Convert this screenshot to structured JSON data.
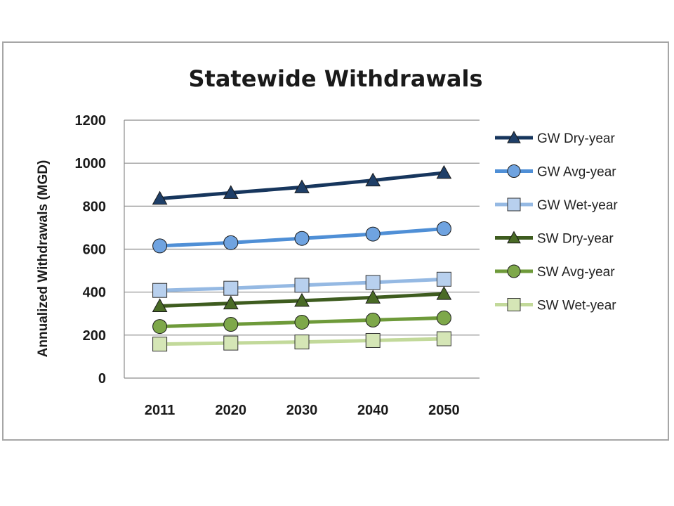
{
  "chart_data": {
    "type": "line",
    "title": "Statewide Withdrawals",
    "ylabel": "Annualized Withdrawals (MGD)",
    "xlabel": "",
    "categories": [
      "2011",
      "2020",
      "2030",
      "2040",
      "2050"
    ],
    "ylim": [
      0,
      1200
    ],
    "yticks": [
      0,
      200,
      400,
      600,
      800,
      1000,
      1200
    ],
    "grid": true,
    "legend_position": "right",
    "series": [
      {
        "name": "GW Dry-year",
        "values": [
          835,
          862,
          888,
          920,
          955
        ],
        "color": "#17365d",
        "marker": "triangle",
        "fill": "#1f3f68"
      },
      {
        "name": "GW Avg-year",
        "values": [
          615,
          630,
          650,
          670,
          695
        ],
        "color": "#4f8fd6",
        "marker": "circle",
        "fill": "#6fa3e0"
      },
      {
        "name": "GW Wet-year",
        "values": [
          408,
          418,
          432,
          445,
          460
        ],
        "color": "#95b9e3",
        "marker": "square",
        "fill": "#b8d0ee"
      },
      {
        "name": "SW Dry-year",
        "values": [
          335,
          348,
          360,
          375,
          392
        ],
        "color": "#3e5c1f",
        "marker": "triangle",
        "fill": "#4a6b26"
      },
      {
        "name": "SW Avg-year",
        "values": [
          240,
          250,
          260,
          270,
          280
        ],
        "color": "#6e9a3a",
        "marker": "circle",
        "fill": "#7ea84a"
      },
      {
        "name": "SW Wet-year",
        "values": [
          158,
          163,
          168,
          175,
          183
        ],
        "color": "#c2d99a",
        "marker": "square",
        "fill": "#d5e6b6"
      }
    ]
  }
}
